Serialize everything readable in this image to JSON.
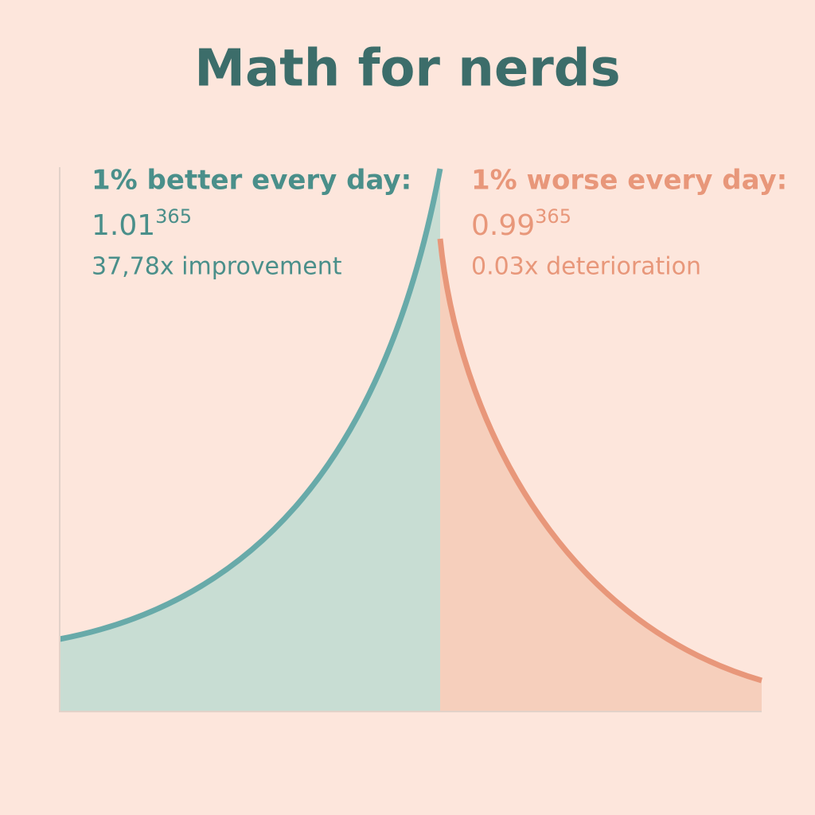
{
  "title": "Math for nerds",
  "left": {
    "heading": "1% better every day:",
    "base": "1.01",
    "exponent": "365",
    "result": "37,78x improvement"
  },
  "right": {
    "heading": "1% worse every day:",
    "base": "0.99",
    "exponent": "365",
    "result": "0.03x deterioration"
  }
}
